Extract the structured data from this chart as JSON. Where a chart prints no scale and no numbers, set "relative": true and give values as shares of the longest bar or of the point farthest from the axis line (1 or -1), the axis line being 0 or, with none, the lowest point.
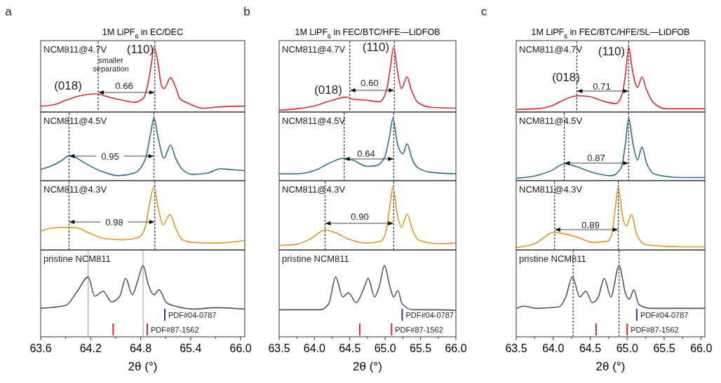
{
  "chart_data": [
    {
      "type": "line",
      "title": "1M LiPF$_{6}$ in EC/DEC",
      "relative": true,
      "xlim": [
        63.6,
        66.05
      ],
      "tick_labels": false,
      "series": [
        {
          "name": "NCM811@4.7V",
          "color": "#e0262f",
          "x": [
            63.6,
            63.75,
            63.9,
            64.07,
            64.26,
            64.42,
            64.59,
            64.72,
            64.83,
            64.89,
            64.93,
            64.96,
            65.0,
            65.05,
            65.08,
            65.16,
            65.22,
            65.27,
            65.38,
            65.54,
            65.76,
            65.98,
            66.05
          ],
          "values": [
            0.09,
            0.11,
            0.18,
            0.25,
            0.28,
            0.23,
            0.18,
            0.15,
            0.21,
            0.45,
            0.75,
            1.0,
            0.82,
            0.41,
            0.36,
            0.53,
            0.38,
            0.21,
            0.13,
            0.06,
            0.08,
            0.09,
            0.09
          ]
        }
      ],
      "ref_lines": [
        {
          "axis": "x",
          "value": 64.29,
          "line_style": "dashed",
          "color": "#333333"
        },
        {
          "axis": "x",
          "value": 64.97,
          "line_style": "dashed",
          "color": "#333333"
        }
      ],
      "annotations": [
        "0.66",
        "smaller separation",
        "(018)",
        "(110)",
        "a"
      ]
    },
    {
      "type": "line",
      "relative": true,
      "xlim": [
        63.6,
        66.05
      ],
      "tick_labels": false,
      "series": [
        {
          "name": "NCM811@4.5V",
          "color": "#2a6f86",
          "x": [
            63.6,
            63.75,
            63.85,
            63.94,
            64.01,
            64.12,
            64.31,
            64.53,
            64.72,
            64.86,
            64.92,
            64.96,
            65.01,
            65.08,
            65.16,
            65.22,
            65.3,
            65.43,
            65.6,
            65.76,
            65.87,
            66.05
          ],
          "values": [
            0.18,
            0.25,
            0.32,
            0.4,
            0.38,
            0.29,
            0.16,
            0.08,
            0.12,
            0.36,
            0.76,
            1.0,
            0.69,
            0.36,
            0.57,
            0.36,
            0.18,
            0.1,
            0.12,
            0.19,
            0.18,
            0.16
          ]
        }
      ],
      "ref_lines": [
        {
          "axis": "x",
          "value": 63.94,
          "line_style": "dashed",
          "color": "#333333"
        },
        {
          "axis": "x",
          "value": 64.96,
          "line_style": "dashed",
          "color": "#333333"
        }
      ],
      "annotations": [
        "0.95"
      ]
    },
    {
      "type": "line",
      "relative": true,
      "xlim": [
        63.6,
        66.05
      ],
      "tick_labels": false,
      "series": [
        {
          "name": "NCM811@4.3V",
          "color": "#e8921f",
          "x": [
            63.6,
            63.75,
            63.94,
            64.04,
            64.18,
            64.37,
            64.59,
            64.78,
            64.86,
            64.91,
            64.96,
            65.01,
            65.07,
            65.15,
            65.22,
            65.3,
            65.43,
            65.71,
            66.05
          ],
          "values": [
            0.3,
            0.35,
            0.36,
            0.35,
            0.27,
            0.18,
            0.16,
            0.2,
            0.38,
            0.75,
            1.0,
            0.67,
            0.4,
            0.56,
            0.35,
            0.16,
            0.12,
            0.11,
            0.15
          ]
        }
      ],
      "ref_lines": [
        {
          "axis": "x",
          "value": 63.94,
          "line_style": "dashed",
          "color": "#333333"
        },
        {
          "axis": "x",
          "value": 64.97,
          "line_style": "dashed",
          "color": "#333333"
        }
      ],
      "annotations": [
        "0.98"
      ]
    },
    {
      "type": "line",
      "relative": true,
      "xlim": [
        63.6,
        66.05
      ],
      "tick_labels": "x",
      "xlabel": "2θ (°)",
      "xticks": [
        {
          "value": 63.6,
          "label": "63.6"
        },
        {
          "value": 63.9,
          "label": null
        },
        {
          "value": 64.2,
          "label": "64.2"
        },
        {
          "value": 64.5,
          "label": null
        },
        {
          "value": 64.8,
          "label": "64.8"
        },
        {
          "value": 65.1,
          "label": null
        },
        {
          "value": 65.4,
          "label": "65.4"
        },
        {
          "value": 65.7,
          "label": null
        },
        {
          "value": 66.0,
          "label": "66.0"
        }
      ],
      "series": [
        {
          "name": "pristine NCM811",
          "color": "#555555",
          "x": [
            63.6,
            63.9,
            64.04,
            64.17,
            64.25,
            64.35,
            64.45,
            64.55,
            64.62,
            64.7,
            64.76,
            64.83,
            64.89,
            64.96,
            65.02,
            65.11,
            65.22,
            65.43,
            65.71,
            66.05
          ],
          "values": [
            0.4,
            0.44,
            0.64,
            0.84,
            0.57,
            0.64,
            0.49,
            0.57,
            0.82,
            0.59,
            0.77,
            1.0,
            0.74,
            0.59,
            0.66,
            0.48,
            0.43,
            0.39,
            0.41,
            0.39
          ]
        }
      ],
      "ref_lines": [
        {
          "axis": "x",
          "value": 64.17,
          "line_style": "solid",
          "color": "#aaaaaa"
        },
        {
          "axis": "x",
          "value": 64.83,
          "line_style": "solid",
          "color": "#aaaaaa"
        },
        {
          "axis": "x",
          "value": 65.09,
          "color": "#1f3fa0",
          "label": "PDF#04-0787"
        },
        {
          "axis": "x",
          "value": 64.47,
          "color": "#e8212a"
        },
        {
          "axis": "x",
          "value": 64.88,
          "color": "#e8212a",
          "label": "PDF#87-1562"
        }
      ]
    },
    {
      "type": "line",
      "title": "1M LiPF$_{6}$ in FEC/BTC/HFE—LiDFOB",
      "relative": true,
      "xlim": [
        63.5,
        66.0
      ],
      "tick_labels": false,
      "series": [
        {
          "name": "NCM811@4.7V",
          "color": "#e0262f",
          "x": [
            63.5,
            63.75,
            64.02,
            64.25,
            64.45,
            64.54,
            64.74,
            64.92,
            65.02,
            65.07,
            65.12,
            65.17,
            65.23,
            65.31,
            65.37,
            65.47,
            65.67,
            66.0
          ],
          "values": [
            0.03,
            0.05,
            0.1,
            0.18,
            0.23,
            0.2,
            0.18,
            0.16,
            0.34,
            0.66,
            1.0,
            0.66,
            0.36,
            0.54,
            0.34,
            0.14,
            0.07,
            0.06
          ]
        }
      ],
      "ref_lines": [
        {
          "axis": "x",
          "value": 64.5,
          "line_style": "dashed",
          "color": "#333333"
        },
        {
          "axis": "x",
          "value": 65.13,
          "line_style": "dashed",
          "color": "#333333"
        }
      ],
      "annotations": [
        "0.60",
        "(018)",
        "(110)",
        "b"
      ]
    },
    {
      "type": "line",
      "relative": true,
      "xlim": [
        63.5,
        66.0
      ],
      "tick_labels": false,
      "series": [
        {
          "name": "NCM811@4.5V",
          "color": "#2a6f86",
          "x": [
            63.5,
            63.75,
            64.02,
            64.21,
            64.41,
            64.54,
            64.74,
            64.87,
            64.99,
            65.06,
            65.11,
            65.17,
            65.25,
            65.31,
            65.38,
            65.47,
            65.67,
            66.0
          ],
          "values": [
            0.11,
            0.11,
            0.17,
            0.28,
            0.36,
            0.33,
            0.23,
            0.24,
            0.37,
            0.7,
            1.0,
            0.61,
            0.43,
            0.59,
            0.35,
            0.2,
            0.13,
            0.11
          ]
        }
      ],
      "ref_lines": [
        {
          "axis": "x",
          "value": 64.42,
          "line_style": "dashed",
          "color": "#333333"
        },
        {
          "axis": "x",
          "value": 65.12,
          "line_style": "dashed",
          "color": "#333333"
        }
      ],
      "annotations": [
        "0.64"
      ]
    },
    {
      "type": "line",
      "relative": true,
      "xlim": [
        63.5,
        66.0
      ],
      "tick_labels": false,
      "series": [
        {
          "name": "NCM811@4.3V",
          "color": "#e8921f",
          "x": [
            63.5,
            63.75,
            63.95,
            64.15,
            64.28,
            64.51,
            64.74,
            64.94,
            65.02,
            65.07,
            65.11,
            65.17,
            65.23,
            65.31,
            65.38,
            65.47,
            65.73,
            66.0
          ],
          "values": [
            0.07,
            0.09,
            0.18,
            0.32,
            0.28,
            0.16,
            0.11,
            0.14,
            0.34,
            0.73,
            1.0,
            0.57,
            0.36,
            0.57,
            0.34,
            0.16,
            0.1,
            0.11
          ]
        }
      ],
      "ref_lines": [
        {
          "axis": "x",
          "value": 64.15,
          "line_style": "dashed",
          "color": "#333333"
        },
        {
          "axis": "x",
          "value": 65.12,
          "line_style": "dashed",
          "color": "#333333"
        }
      ],
      "annotations": [
        "0.90"
      ]
    },
    {
      "type": "line",
      "relative": true,
      "xlim": [
        63.5,
        66.0
      ],
      "tick_labels": "x",
      "xlabel": "2θ (°)",
      "xticks": [
        {
          "value": 63.5,
          "label": "63.5"
        },
        {
          "value": 63.75,
          "label": null
        },
        {
          "value": 64.0,
          "label": "64.0"
        },
        {
          "value": 64.25,
          "label": null
        },
        {
          "value": 64.5,
          "label": "64.5"
        },
        {
          "value": 64.75,
          "label": null
        },
        {
          "value": 65.0,
          "label": "65.0"
        },
        {
          "value": 65.25,
          "label": null
        },
        {
          "value": 65.5,
          "label": "65.5"
        },
        {
          "value": 65.75,
          "label": null
        },
        {
          "value": 66.0,
          "label": "66.0"
        }
      ],
      "series": [
        {
          "name": "pristine NCM811",
          "color": "#555555",
          "x": [
            63.5,
            63.75,
            64.08,
            64.2,
            64.3,
            64.4,
            64.48,
            64.59,
            64.69,
            64.76,
            64.85,
            64.92,
            64.99,
            65.07,
            65.12,
            65.18,
            65.24,
            65.4,
            65.73,
            66.0
          ],
          "values": [
            0.38,
            0.38,
            0.38,
            0.46,
            0.84,
            0.56,
            0.62,
            0.48,
            0.66,
            0.82,
            0.56,
            0.72,
            1.0,
            0.69,
            0.56,
            0.65,
            0.46,
            0.38,
            0.38,
            0.37
          ]
        }
      ],
      "ref_lines": [
        {
          "axis": "x",
          "value": 65.24,
          "color": "#1f3fa0",
          "label": "PDF#04-0787"
        },
        {
          "axis": "x",
          "value": 64.64,
          "color": "#e8212a"
        },
        {
          "axis": "x",
          "value": 65.09,
          "color": "#e8212a",
          "label": "PDF#87-1562"
        }
      ]
    },
    {
      "type": "line",
      "title": "1M LiPF$_{6}$ in FEC/BTC/HFE/SL—LiDFOB",
      "relative": true,
      "xlim": [
        63.5,
        66.05
      ],
      "tick_labels": false,
      "series": [
        {
          "name": "NCM811@4.7V",
          "color": "#e0262f",
          "x": [
            63.51,
            63.77,
            63.99,
            64.17,
            64.33,
            64.48,
            64.67,
            64.85,
            64.93,
            64.98,
            65.02,
            65.07,
            65.14,
            65.2,
            65.26,
            65.35,
            65.53,
            65.72,
            66.05
          ],
          "values": [
            0.04,
            0.05,
            0.1,
            0.2,
            0.25,
            0.24,
            0.17,
            0.13,
            0.27,
            0.6,
            1.0,
            0.65,
            0.38,
            0.54,
            0.35,
            0.15,
            0.05,
            0.05,
            0.05
          ]
        }
      ],
      "ref_lines": [
        {
          "axis": "x",
          "value": 64.32,
          "line_style": "dashed",
          "color": "#333333"
        },
        {
          "axis": "x",
          "value": 65.02,
          "line_style": "dashed",
          "color": "#333333"
        }
      ],
      "annotations": [
        "0.71",
        "(018)",
        "(110)",
        "c"
      ]
    },
    {
      "type": "line",
      "relative": true,
      "xlim": [
        63.5,
        66.05
      ],
      "tick_labels": false,
      "series": [
        {
          "name": "NCM811@4.5V",
          "color": "#2a6f86",
          "x": [
            63.51,
            63.77,
            63.99,
            64.15,
            64.3,
            64.54,
            64.79,
            64.92,
            64.98,
            65.02,
            65.08,
            65.14,
            65.2,
            65.26,
            65.38,
            65.72,
            66.05
          ],
          "values": [
            0.04,
            0.08,
            0.17,
            0.27,
            0.23,
            0.13,
            0.08,
            0.21,
            0.63,
            1.0,
            0.58,
            0.33,
            0.54,
            0.29,
            0.1,
            0.05,
            0.05
          ]
        }
      ],
      "ref_lines": [
        {
          "axis": "x",
          "value": 64.15,
          "line_style": "dashed",
          "color": "#333333"
        },
        {
          "axis": "x",
          "value": 65.02,
          "line_style": "dashed",
          "color": "#333333"
        }
      ],
      "annotations": [
        "0.87"
      ]
    },
    {
      "type": "line",
      "relative": true,
      "xlim": [
        63.5,
        66.05
      ],
      "tick_labels": false,
      "series": [
        {
          "name": "NCM811@4.3V",
          "color": "#e8921f",
          "x": [
            63.51,
            63.77,
            64.01,
            64.14,
            64.33,
            64.54,
            64.73,
            64.79,
            64.84,
            64.88,
            64.93,
            64.99,
            65.06,
            65.13,
            65.26,
            65.72,
            66.05
          ],
          "values": [
            0.04,
            0.11,
            0.28,
            0.26,
            0.2,
            0.12,
            0.14,
            0.24,
            0.67,
            1.0,
            0.58,
            0.38,
            0.56,
            0.24,
            0.08,
            0.05,
            0.05
          ]
        }
      ],
      "ref_lines": [
        {
          "axis": "x",
          "value": 64.02,
          "line_style": "dashed",
          "color": "#333333"
        },
        {
          "axis": "x",
          "value": 64.88,
          "line_style": "dashed",
          "color": "#333333"
        }
      ],
      "annotations": [
        "0.89"
      ]
    },
    {
      "type": "line",
      "relative": true,
      "xlim": [
        63.5,
        66.05
      ],
      "tick_labels": "x",
      "xlabel": "2θ (°)",
      "xticks": [
        {
          "value": 63.5,
          "label": "63.5"
        },
        {
          "value": 63.75,
          "label": null
        },
        {
          "value": 64.0,
          "label": "64.0"
        },
        {
          "value": 64.25,
          "label": null
        },
        {
          "value": 64.5,
          "label": "64.5"
        },
        {
          "value": 64.75,
          "label": null
        },
        {
          "value": 65.0,
          "label": "65.0"
        },
        {
          "value": 65.25,
          "label": null
        },
        {
          "value": 65.5,
          "label": "65.5"
        },
        {
          "value": 65.75,
          "label": null
        },
        {
          "value": 66.0,
          "label": "66.0"
        }
      ],
      "series": [
        {
          "name": "pristine NCM811",
          "color": "#555555",
          "x": [
            63.51,
            63.6,
            63.77,
            64.08,
            64.17,
            64.26,
            64.36,
            64.44,
            64.53,
            64.61,
            64.69,
            64.78,
            64.89,
            64.98,
            65.03,
            65.09,
            65.16,
            65.32,
            65.72,
            66.05
          ],
          "values": [
            0.4,
            0.43,
            0.4,
            0.42,
            0.56,
            0.84,
            0.56,
            0.64,
            0.48,
            0.56,
            0.82,
            0.56,
            1.0,
            0.6,
            0.53,
            0.66,
            0.45,
            0.4,
            0.4,
            0.4
          ]
        }
      ],
      "ref_lines": [
        {
          "axis": "x",
          "value": 64.27,
          "line_style": "dashed",
          "color": "#333333"
        },
        {
          "axis": "x",
          "value": 64.89,
          "line_style": "dashed",
          "color": "#333333"
        },
        {
          "axis": "x",
          "value": 65.13,
          "color": "#1f3fa0",
          "label": "PDF#04-0787"
        },
        {
          "axis": "x",
          "value": 64.58,
          "color": "#e8212a"
        },
        {
          "axis": "x",
          "value": 65.0,
          "color": "#e8212a",
          "label": "PDF#87-1562"
        }
      ]
    }
  ]
}
